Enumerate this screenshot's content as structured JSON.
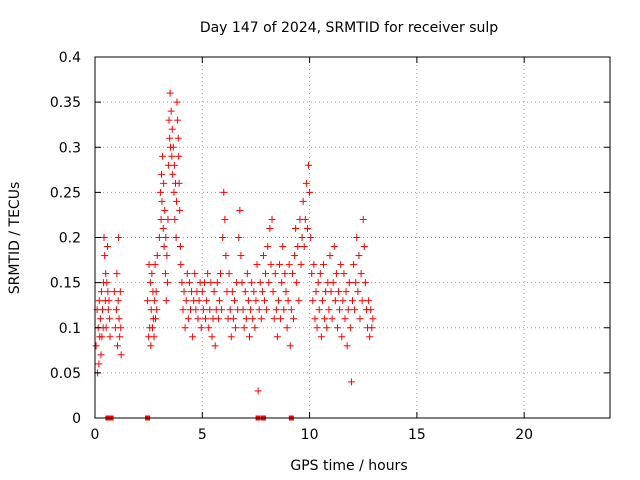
{
  "chart_data": {
    "type": "scatter",
    "title": "Day 147 of 2024, SRMTID for receiver sulp",
    "xlabel": "GPS time / hours",
    "ylabel": "SRMTID / TECUs",
    "xlim": [
      0,
      24
    ],
    "ylim": [
      0,
      0.4
    ],
    "x_ticks": [
      {
        "value": 0,
        "label": "0"
      },
      {
        "value": 5,
        "label": "5"
      },
      {
        "value": 10,
        "label": "10"
      },
      {
        "value": 15,
        "label": "15"
      },
      {
        "value": 20,
        "label": "20"
      }
    ],
    "y_ticks": [
      {
        "value": 0,
        "label": "0"
      },
      {
        "value": 0.05,
        "label": "0.05"
      },
      {
        "value": 0.1,
        "label": "0.1"
      },
      {
        "value": 0.15,
        "label": "0.15"
      },
      {
        "value": 0.2,
        "label": "0.2"
      },
      {
        "value": 0.25,
        "label": "0.25"
      },
      {
        "value": 0.3,
        "label": "0.3"
      },
      {
        "value": 0.35,
        "label": "0.35"
      },
      {
        "value": 0.4,
        "label": "0.4"
      }
    ],
    "grid": true,
    "marker": "+",
    "series_color": "#ff0000",
    "series": [
      {
        "points": [
          [
            0.05,
            0.08
          ],
          [
            0.1,
            0.12
          ],
          [
            0.12,
            0.05
          ],
          [
            0.15,
            0.1
          ],
          [
            0.18,
            0.06
          ],
          [
            0.2,
            0.13
          ],
          [
            0.22,
            0.09
          ],
          [
            0.25,
            0.11
          ],
          [
            0.28,
            0.07
          ],
          [
            0.3,
            0.14
          ],
          [
            0.32,
            0.09
          ],
          [
            0.35,
            0.12
          ],
          [
            0.38,
            0.1
          ],
          [
            0.4,
            0.15
          ],
          [
            0.42,
            0.2
          ],
          [
            0.45,
            0.18
          ],
          [
            0.48,
            0.13
          ],
          [
            0.5,
            0.16
          ],
          [
            0.52,
            0.1
          ],
          [
            0.55,
            0.15
          ],
          [
            0.58,
            0.19
          ],
          [
            0.6,
            0.14
          ],
          [
            0.62,
            0.12
          ],
          [
            0.65,
            0.13
          ],
          [
            0.68,
            0.11
          ],
          [
            0.7,
            0.09
          ],
          [
            0.9,
            0.14
          ],
          [
            0.95,
            0.1
          ],
          [
            1.0,
            0.12
          ],
          [
            1.02,
            0.16
          ],
          [
            1.05,
            0.08
          ],
          [
            1.08,
            0.13
          ],
          [
            1.1,
            0.2
          ],
          [
            1.12,
            0.11
          ],
          [
            1.15,
            0.09
          ],
          [
            1.18,
            0.14
          ],
          [
            1.2,
            0.1
          ],
          [
            1.22,
            0.07
          ],
          [
            2.45,
            0.13
          ],
          [
            2.5,
            0.09
          ],
          [
            2.52,
            0.17
          ],
          [
            2.55,
            0.1
          ],
          [
            2.58,
            0.15
          ],
          [
            2.6,
            0.08
          ],
          [
            2.62,
            0.12
          ],
          [
            2.65,
            0.16
          ],
          [
            2.68,
            0.1
          ],
          [
            2.7,
            0.14
          ],
          [
            2.72,
            0.11
          ],
          [
            2.75,
            0.09
          ],
          [
            2.78,
            0.13
          ],
          [
            2.8,
            0.17
          ],
          [
            2.82,
            0.11
          ],
          [
            2.85,
            0.14
          ],
          [
            2.88,
            0.12
          ],
          [
            2.9,
            0.18
          ],
          [
            3.0,
            0.2
          ],
          [
            3.05,
            0.25
          ],
          [
            3.08,
            0.22
          ],
          [
            3.1,
            0.27
          ],
          [
            3.12,
            0.24
          ],
          [
            3.15,
            0.29
          ],
          [
            3.18,
            0.21
          ],
          [
            3.2,
            0.26
          ],
          [
            3.22,
            0.19
          ],
          [
            3.25,
            0.23
          ],
          [
            3.28,
            0.16
          ],
          [
            3.3,
            0.2
          ],
          [
            3.32,
            0.13
          ],
          [
            3.35,
            0.18
          ],
          [
            3.38,
            0.15
          ],
          [
            3.4,
            0.22
          ],
          [
            3.42,
            0.28
          ],
          [
            3.45,
            0.33
          ],
          [
            3.48,
            0.31
          ],
          [
            3.5,
            0.36
          ],
          [
            3.52,
            0.3
          ],
          [
            3.55,
            0.34
          ],
          [
            3.58,
            0.29
          ],
          [
            3.6,
            0.32
          ],
          [
            3.62,
            0.27
          ],
          [
            3.65,
            0.3
          ],
          [
            3.68,
            0.25
          ],
          [
            3.7,
            0.28
          ],
          [
            3.72,
            0.22
          ],
          [
            3.75,
            0.26
          ],
          [
            3.78,
            0.2
          ],
          [
            3.8,
            0.24
          ],
          [
            3.82,
            0.35
          ],
          [
            3.85,
            0.33
          ],
          [
            3.88,
            0.31
          ],
          [
            3.9,
            0.29
          ],
          [
            3.92,
            0.26
          ],
          [
            3.95,
            0.23
          ],
          [
            3.98,
            0.19
          ],
          [
            4.0,
            0.17
          ],
          [
            4.05,
            0.15
          ],
          [
            4.1,
            0.12
          ],
          [
            4.15,
            0.14
          ],
          [
            4.2,
            0.1
          ],
          [
            4.25,
            0.13
          ],
          [
            4.3,
            0.16
          ],
          [
            4.35,
            0.11
          ],
          [
            4.4,
            0.15
          ],
          [
            4.45,
            0.12
          ],
          [
            4.5,
            0.14
          ],
          [
            4.55,
            0.09
          ],
          [
            4.6,
            0.13
          ],
          [
            4.65,
            0.16
          ],
          [
            4.7,
            0.12
          ],
          [
            4.75,
            0.14
          ],
          [
            4.8,
            0.11
          ],
          [
            4.85,
            0.13
          ],
          [
            4.9,
            0.15
          ],
          [
            4.95,
            0.1
          ],
          [
            5.0,
            0.14
          ],
          [
            5.05,
            0.12
          ],
          [
            5.1,
            0.15
          ],
          [
            5.15,
            0.11
          ],
          [
            5.2,
            0.13
          ],
          [
            5.25,
            0.16
          ],
          [
            5.3,
            0.1
          ],
          [
            5.35,
            0.12
          ],
          [
            5.4,
            0.15
          ],
          [
            5.45,
            0.09
          ],
          [
            5.5,
            0.11
          ],
          [
            5.55,
            0.14
          ],
          [
            5.6,
            0.08
          ],
          [
            5.65,
            0.12
          ],
          [
            5.7,
            0.15
          ],
          [
            5.75,
            0.11
          ],
          [
            5.8,
            0.13
          ],
          [
            5.85,
            0.16
          ],
          [
            5.9,
            0.12
          ],
          [
            5.95,
            0.2
          ],
          [
            6.0,
            0.25
          ],
          [
            6.05,
            0.22
          ],
          [
            6.1,
            0.18
          ],
          [
            6.15,
            0.14
          ],
          [
            6.2,
            0.11
          ],
          [
            6.25,
            0.16
          ],
          [
            6.3,
            0.12
          ],
          [
            6.35,
            0.09
          ],
          [
            6.4,
            0.14
          ],
          [
            6.45,
            0.11
          ],
          [
            6.5,
            0.13
          ],
          [
            6.55,
            0.1
          ],
          [
            6.6,
            0.15
          ],
          [
            6.65,
            0.12
          ],
          [
            6.7,
            0.2
          ],
          [
            6.75,
            0.23
          ],
          [
            6.8,
            0.18
          ],
          [
            6.85,
            0.15
          ],
          [
            6.9,
            0.12
          ],
          [
            6.95,
            0.1
          ],
          [
            7.0,
            0.14
          ],
          [
            7.05,
            0.11
          ],
          [
            7.1,
            0.16
          ],
          [
            7.15,
            0.13
          ],
          [
            7.2,
            0.09
          ],
          [
            7.25,
            0.12
          ],
          [
            7.3,
            0.15
          ],
          [
            7.35,
            0.11
          ],
          [
            7.4,
            0.14
          ],
          [
            7.45,
            0.1
          ],
          [
            7.5,
            0.13
          ],
          [
            7.55,
            0.17
          ],
          [
            7.6,
            0.03
          ],
          [
            7.65,
            0.12
          ],
          [
            7.7,
            0.15
          ],
          [
            7.75,
            0.11
          ],
          [
            7.8,
            0.14
          ],
          [
            7.85,
            0.18
          ],
          [
            7.9,
            0.13
          ],
          [
            7.95,
            0.16
          ],
          [
            8.0,
            0.12
          ],
          [
            8.05,
            0.19
          ],
          [
            8.1,
            0.15
          ],
          [
            8.15,
            0.21
          ],
          [
            8.2,
            0.17
          ],
          [
            8.25,
            0.22
          ],
          [
            8.3,
            0.14
          ],
          [
            8.35,
            0.11
          ],
          [
            8.4,
            0.16
          ],
          [
            8.45,
            0.12
          ],
          [
            8.5,
            0.09
          ],
          [
            8.55,
            0.13
          ],
          [
            8.6,
            0.17
          ],
          [
            8.65,
            0.11
          ],
          [
            8.7,
            0.15
          ],
          [
            8.75,
            0.19
          ],
          [
            8.8,
            0.12
          ],
          [
            8.85,
            0.16
          ],
          [
            8.9,
            0.14
          ],
          [
            8.95,
            0.1
          ],
          [
            9.0,
            0.13
          ],
          [
            9.05,
            0.17
          ],
          [
            9.1,
            0.08
          ],
          [
            9.15,
            0.12
          ],
          [
            9.2,
            0.16
          ],
          [
            9.25,
            0.11
          ],
          [
            9.3,
            0.18
          ],
          [
            9.35,
            0.21
          ],
          [
            9.4,
            0.15
          ],
          [
            9.45,
            0.19
          ],
          [
            9.5,
            0.13
          ],
          [
            9.55,
            0.22
          ],
          [
            9.6,
            0.17
          ],
          [
            9.65,
            0.2
          ],
          [
            9.7,
            0.24
          ],
          [
            9.75,
            0.19
          ],
          [
            9.8,
            0.22
          ],
          [
            9.85,
            0.26
          ],
          [
            9.9,
            0.21
          ],
          [
            9.95,
            0.28
          ],
          [
            10.0,
            0.25
          ],
          [
            10.05,
            0.2
          ],
          [
            10.1,
            0.16
          ],
          [
            10.15,
            0.13
          ],
          [
            10.2,
            0.17
          ],
          [
            10.25,
            0.11
          ],
          [
            10.3,
            0.14
          ],
          [
            10.35,
            0.1
          ],
          [
            10.4,
            0.15
          ],
          [
            10.45,
            0.12
          ],
          [
            10.5,
            0.16
          ],
          [
            10.55,
            0.09
          ],
          [
            10.6,
            0.13
          ],
          [
            10.65,
            0.17
          ],
          [
            10.7,
            0.11
          ],
          [
            10.75,
            0.14
          ],
          [
            10.8,
            0.1
          ],
          [
            10.85,
            0.15
          ],
          [
            10.9,
            0.12
          ],
          [
            10.95,
            0.18
          ],
          [
            11.0,
            0.14
          ],
          [
            11.05,
            0.11
          ],
          [
            11.1,
            0.15
          ],
          [
            11.15,
            0.19
          ],
          [
            11.2,
            0.13
          ],
          [
            11.25,
            0.16
          ],
          [
            11.3,
            0.1
          ],
          [
            11.35,
            0.14
          ],
          [
            11.4,
            0.12
          ],
          [
            11.45,
            0.17
          ],
          [
            11.5,
            0.09
          ],
          [
            11.55,
            0.13
          ],
          [
            11.6,
            0.16
          ],
          [
            11.65,
            0.11
          ],
          [
            11.7,
            0.14
          ],
          [
            11.75,
            0.08
          ],
          [
            11.8,
            0.12
          ],
          [
            11.85,
            0.15
          ],
          [
            11.9,
            0.1
          ],
          [
            11.95,
            0.04
          ],
          [
            12.0,
            0.13
          ],
          [
            12.05,
            0.17
          ],
          [
            12.1,
            0.12
          ],
          [
            12.15,
            0.15
          ],
          [
            12.2,
            0.2
          ],
          [
            12.25,
            0.14
          ],
          [
            12.3,
            0.18
          ],
          [
            12.35,
            0.11
          ],
          [
            12.4,
            0.16
          ],
          [
            12.45,
            0.13
          ],
          [
            12.5,
            0.22
          ],
          [
            12.55,
            0.19
          ],
          [
            12.6,
            0.15
          ],
          [
            12.65,
            0.12
          ],
          [
            12.7,
            0.1
          ],
          [
            12.75,
            0.13
          ],
          [
            12.8,
            0.09
          ],
          [
            12.85,
            0.12
          ],
          [
            12.9,
            0.1
          ],
          [
            12.95,
            0.11
          ]
        ]
      }
    ],
    "baseline_markers": [
      0.6,
      0.75,
      2.45,
      7.6,
      7.85,
      9.15
    ]
  }
}
